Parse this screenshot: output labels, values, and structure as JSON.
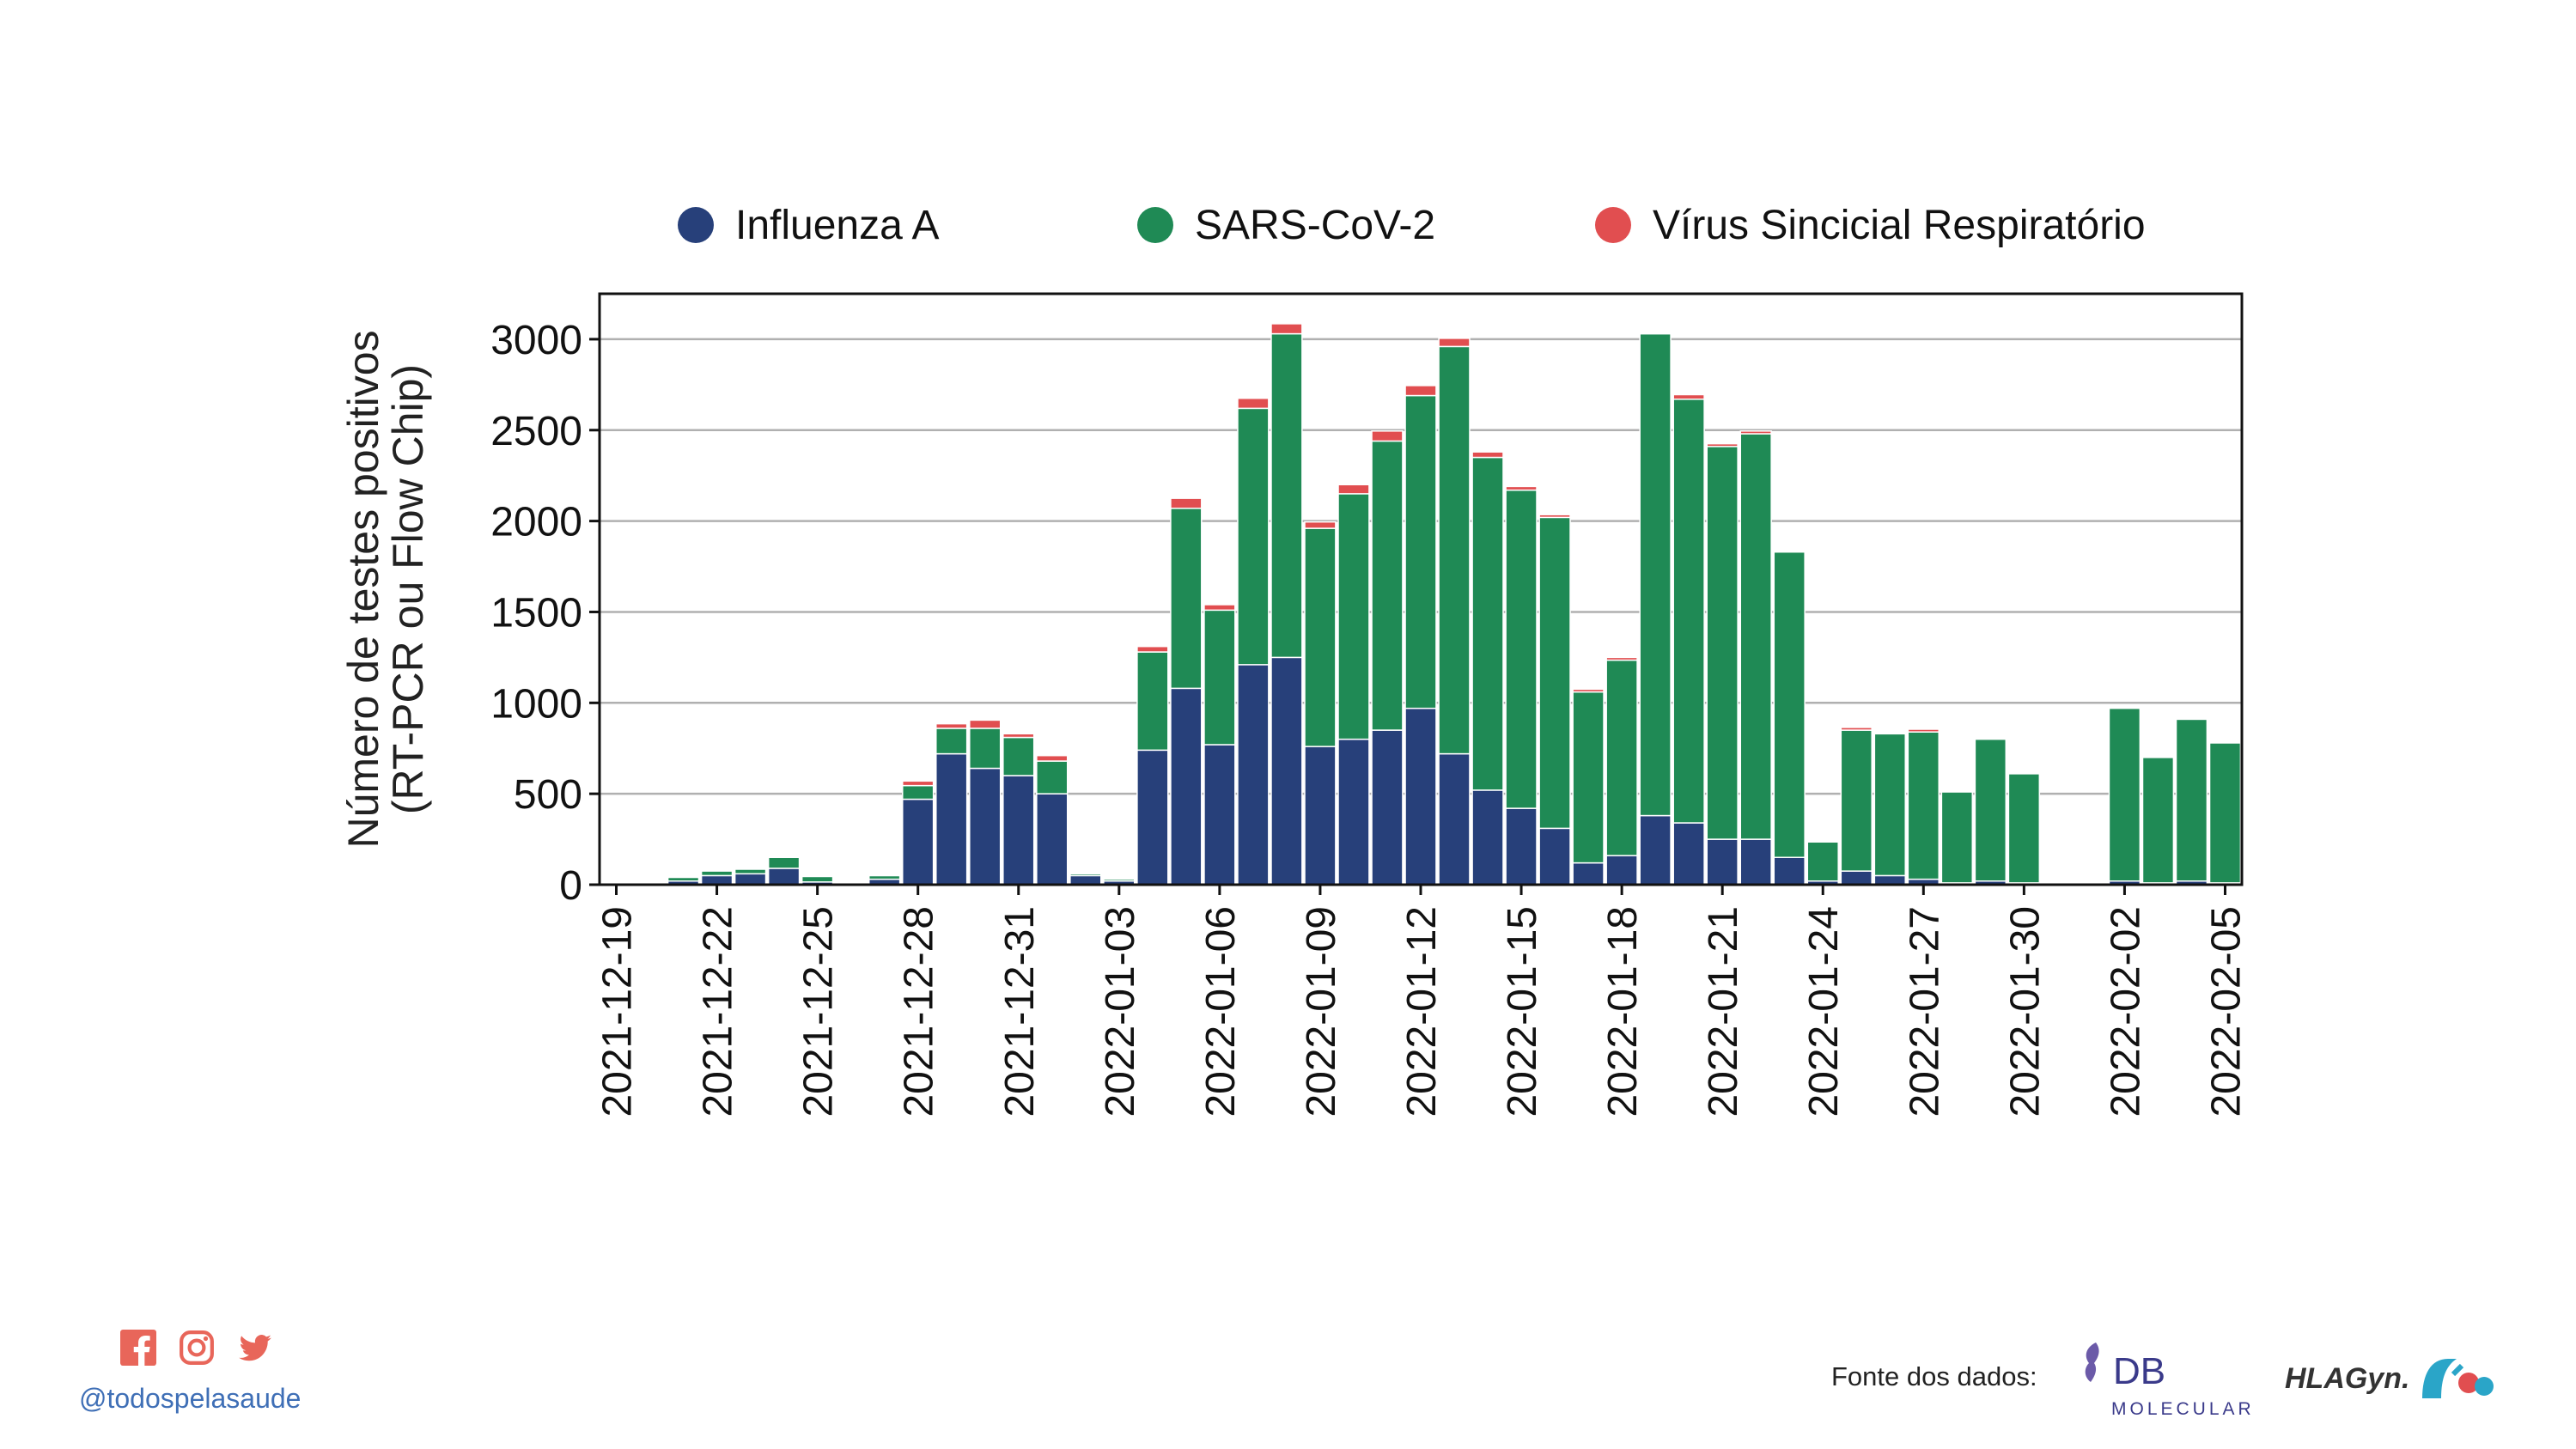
{
  "chart_data": {
    "type": "bar",
    "stacked": true,
    "ylabel_lines": [
      "Número de testes positivos",
      "(RT-PCR ou Flow Chip)"
    ],
    "xlabel": "",
    "ylim": [
      0,
      3250
    ],
    "yticks": [
      0,
      500,
      1000,
      1500,
      2000,
      2500,
      3000
    ],
    "grid": "horizontal",
    "legend_position": "top",
    "x_dates": [
      "2021-12-19",
      "2021-12-20",
      "2021-12-21",
      "2021-12-22",
      "2021-12-23",
      "2021-12-24",
      "2021-12-25",
      "2021-12-26",
      "2021-12-27",
      "2021-12-28",
      "2021-12-29",
      "2021-12-30",
      "2021-12-31",
      "2022-01-01",
      "2022-01-02",
      "2022-01-03",
      "2022-01-04",
      "2022-01-05",
      "2022-01-06",
      "2022-01-07",
      "2022-01-08",
      "2022-01-09",
      "2022-01-10",
      "2022-01-11",
      "2022-01-12",
      "2022-01-13",
      "2022-01-14",
      "2022-01-15",
      "2022-01-16",
      "2022-01-17",
      "2022-01-18",
      "2022-01-19",
      "2022-01-20",
      "2022-01-21",
      "2022-01-22",
      "2022-01-23",
      "2022-01-24",
      "2022-01-25",
      "2022-01-26",
      "2022-01-27",
      "2022-01-28",
      "2022-01-29",
      "2022-01-30",
      "2022-01-31",
      "2022-02-01",
      "2022-02-02",
      "2022-02-03",
      "2022-02-04",
      "2022-02-05"
    ],
    "xticks": [
      "2021-12-19",
      "2021-12-22",
      "2021-12-25",
      "2021-12-28",
      "2021-12-31",
      "2022-01-03",
      "2022-01-06",
      "2022-01-09",
      "2022-01-12",
      "2022-01-15",
      "2022-01-18",
      "2022-01-21",
      "2022-01-24",
      "2022-01-27",
      "2022-01-30",
      "2022-02-02",
      "2022-02-05"
    ],
    "series": [
      {
        "name": "Influenza A",
        "color": "#27407a",
        "values": [
          0,
          5,
          20,
          50,
          60,
          90,
          15,
          0,
          30,
          470,
          720,
          640,
          600,
          500,
          50,
          20,
          740,
          1080,
          770,
          1210,
          1250,
          760,
          800,
          850,
          970,
          720,
          520,
          420,
          310,
          120,
          160,
          380,
          340,
          250,
          250,
          150,
          20,
          75,
          50,
          30,
          10,
          20,
          10,
          0,
          0,
          20,
          10,
          20,
          10
        ]
      },
      {
        "name": "SARS-CoV-2",
        "color": "#1f8a55",
        "values": [
          0,
          0,
          20,
          25,
          25,
          60,
          30,
          0,
          20,
          75,
          140,
          220,
          210,
          180,
          10,
          10,
          540,
          990,
          740,
          1410,
          1780,
          1200,
          1350,
          1590,
          1720,
          2240,
          1830,
          1750,
          1710,
          940,
          1075,
          2650,
          2330,
          2160,
          2230,
          1680,
          215,
          775,
          780,
          810,
          500,
          780,
          600,
          0,
          0,
          950,
          690,
          890,
          770
        ]
      },
      {
        "name": "Vírus Sincicial Respiratório",
        "color": "#e14e50",
        "values": [
          0,
          0,
          0,
          0,
          0,
          5,
          0,
          0,
          5,
          25,
          25,
          45,
          20,
          30,
          0,
          0,
          30,
          55,
          30,
          55,
          55,
          35,
          50,
          55,
          55,
          45,
          30,
          20,
          15,
          15,
          15,
          5,
          25,
          15,
          15,
          5,
          0,
          15,
          5,
          15,
          0,
          0,
          0,
          0,
          0,
          0,
          5,
          5,
          5
        ]
      }
    ]
  },
  "footer": {
    "handle": "@todospelasaude",
    "source_label": "Fonte dos dados:",
    "db_logo_text": "DB",
    "db_logo_sub": "MOLECULAR",
    "hla_logo_text": "HLAGyn.",
    "social_icons": [
      "facebook-icon",
      "instagram-icon",
      "twitter-icon"
    ],
    "social_color": "#e8665a"
  }
}
